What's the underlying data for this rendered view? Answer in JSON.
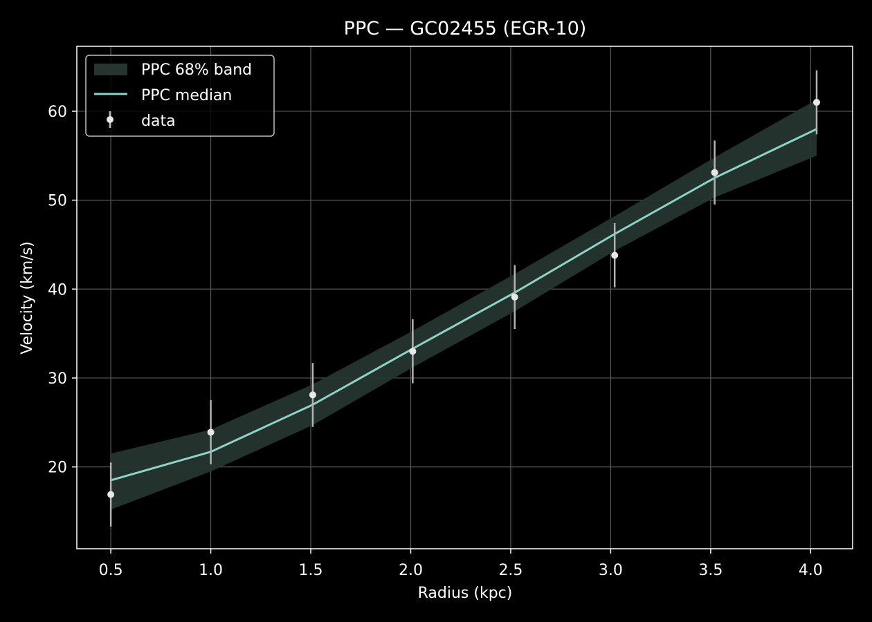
{
  "chart_data": {
    "type": "line",
    "title": "PPC — GC02455 (EGR-10)",
    "xlabel": "Radius (kpc)",
    "ylabel": "Velocity (km/s)",
    "xlim": [
      0.33,
      4.21
    ],
    "ylim": [
      10.8,
      67.3
    ],
    "xticks": [
      0.5,
      1.0,
      1.5,
      2.0,
      2.5,
      3.0,
      3.5,
      4.0
    ],
    "xtick_labels": [
      "0.5",
      "1.0",
      "1.5",
      "2.0",
      "2.5",
      "3.0",
      "3.5",
      "4.0"
    ],
    "yticks": [
      20,
      30,
      40,
      50,
      60
    ],
    "ytick_labels": [
      "20",
      "30",
      "40",
      "50",
      "60"
    ],
    "grid": true,
    "legend_position": "top-left",
    "legend": [
      "PPC 68% band",
      "PPC median",
      "data"
    ],
    "colors": {
      "background": "#000000",
      "band": "#26352f",
      "median": "#8dd3c7",
      "data_point": "#e8e8e8",
      "error_bar": "#b3b3b3",
      "grid": "#5a5a5a",
      "axes": "#ffffff"
    },
    "band": {
      "name": "PPC 68% band",
      "x": [
        0.5,
        1.0,
        1.51,
        2.01,
        2.52,
        3.02,
        3.52,
        4.03
      ],
      "lower": [
        15.2,
        19.5,
        24.7,
        31.2,
        37.5,
        44.3,
        50.3,
        55.0
      ],
      "upper": [
        21.5,
        24.2,
        29.3,
        35.3,
        41.7,
        48.2,
        54.8,
        61.3
      ]
    },
    "median": {
      "name": "PPC median",
      "x": [
        0.5,
        1.0,
        1.51,
        2.01,
        2.52,
        3.02,
        3.52,
        4.03
      ],
      "y": [
        18.5,
        21.7,
        27.0,
        33.3,
        39.6,
        46.2,
        52.5,
        58.0
      ]
    },
    "data": {
      "name": "data",
      "x": [
        0.5,
        1.0,
        1.51,
        2.01,
        2.52,
        3.02,
        3.52,
        4.03
      ],
      "y": [
        16.9,
        23.9,
        28.1,
        33.0,
        39.1,
        43.8,
        53.1,
        61.0
      ],
      "yerr": [
        3.6,
        3.6,
        3.6,
        3.6,
        3.6,
        3.6,
        3.6,
        3.6
      ]
    }
  }
}
